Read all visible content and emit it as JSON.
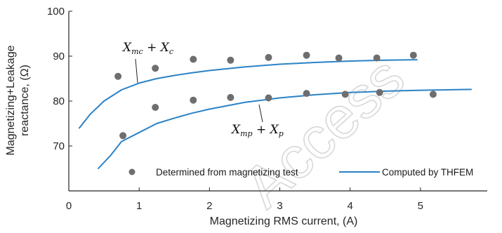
{
  "chart_data": {
    "type": "line",
    "xlabel": "Magnetizing RMS current, (A)",
    "ylabel_line1": "Magnetizing+Leakage",
    "ylabel_line2": "reactance, (Ω)",
    "xlim": [
      0,
      5.95
    ],
    "ylim": [
      60,
      100
    ],
    "xticks": [
      0,
      1,
      2,
      3,
      4,
      5
    ],
    "yticks": [
      70,
      80,
      90,
      100
    ],
    "grid": false,
    "legend_position": "bottom",
    "colors": {
      "line": "#2b82c6",
      "marker": "#6e6e6e",
      "axis": "#262626"
    },
    "series": [
      {
        "name": "Computed by THFEM",
        "kind": "line",
        "group": "upper",
        "x": [
          0.15,
          0.3,
          0.5,
          0.75,
          1.0,
          1.25,
          1.5,
          1.75,
          2.0,
          2.5,
          3.0,
          3.5,
          4.0,
          4.5,
          4.95
        ],
        "y": [
          74.0,
          77.0,
          80.0,
          82.5,
          84.0,
          85.0,
          85.7,
          86.3,
          86.8,
          87.6,
          88.2,
          88.6,
          88.9,
          89.1,
          89.2
        ]
      },
      {
        "name": "Computed by THFEM",
        "kind": "line",
        "group": "lower",
        "x": [
          0.42,
          0.6,
          0.75,
          1.0,
          1.25,
          1.5,
          1.75,
          2.0,
          2.5,
          3.0,
          3.5,
          4.0,
          4.5,
          5.0,
          5.72
        ],
        "y": [
          65.0,
          68.0,
          71.0,
          73.0,
          75.0,
          76.2,
          77.3,
          78.2,
          79.7,
          80.7,
          81.4,
          81.9,
          82.2,
          82.4,
          82.6
        ]
      },
      {
        "name": "Determined from magnetizing test",
        "kind": "points",
        "group": "upper",
        "x": [
          0.7,
          1.23,
          1.77,
          2.3,
          2.84,
          3.38,
          3.84,
          4.38,
          4.9
        ],
        "y": [
          85.5,
          87.3,
          89.3,
          89.1,
          89.7,
          90.2,
          89.6,
          89.6,
          90.2
        ]
      },
      {
        "name": "Determined from magnetizing test",
        "kind": "points",
        "group": "lower",
        "x": [
          0.77,
          1.23,
          1.77,
          2.3,
          2.84,
          3.38,
          3.93,
          4.42,
          5.18
        ],
        "y": [
          72.3,
          78.6,
          80.2,
          80.8,
          80.7,
          81.7,
          81.5,
          81.9,
          81.5
        ]
      }
    ],
    "annotations": [
      {
        "main1": "X",
        "sub1": "mc",
        "plus": " + ",
        "main2": "X",
        "sub2": "c"
      },
      {
        "main1": "X",
        "sub1": "mp",
        "plus": " + ",
        "main2": "X",
        "sub2": "p"
      }
    ],
    "legend": [
      {
        "label": "Determined from magnetizing test",
        "kind": "marker"
      },
      {
        "label": "Computed by THFEM",
        "kind": "line"
      }
    ]
  },
  "watermark": "Access"
}
